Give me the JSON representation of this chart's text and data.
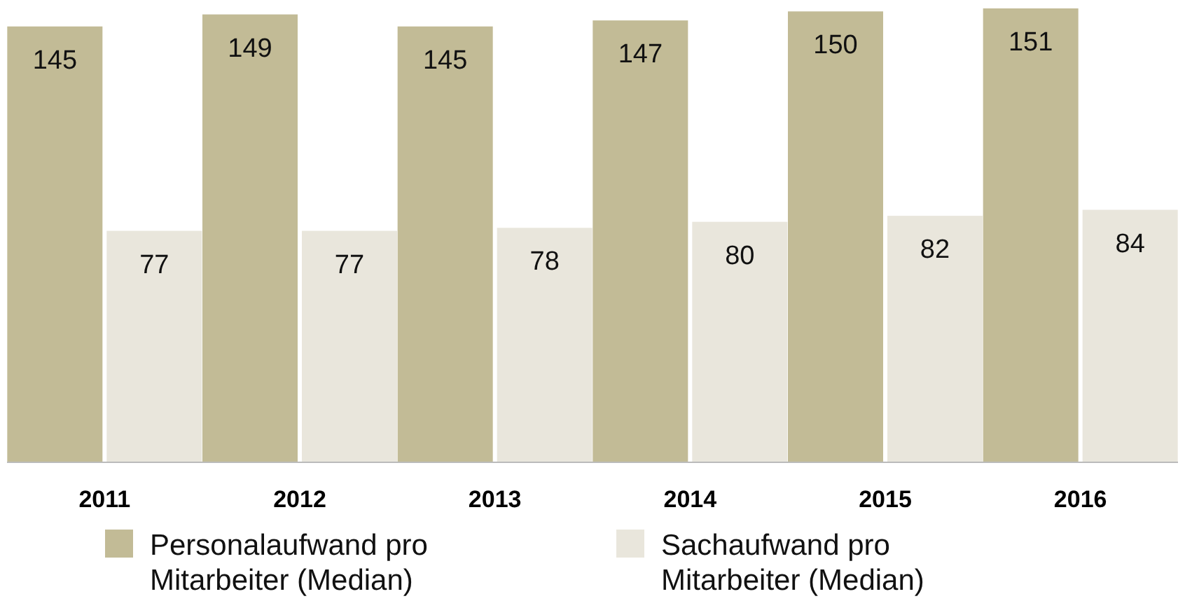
{
  "chart_data": {
    "type": "bar",
    "categories": [
      "2011",
      "2012",
      "2013",
      "2014",
      "2015",
      "2016"
    ],
    "series": [
      {
        "name": "Personalaufwand pro Mitarbeiter (Median)",
        "color": "#c2bb96",
        "values": [
          145,
          149,
          145,
          147,
          150,
          151
        ]
      },
      {
        "name": "Sachaufwand pro Mitarbeiter (Median)",
        "color": "#e9e6dc",
        "values": [
          77,
          77,
          78,
          80,
          82,
          84
        ]
      }
    ],
    "data_labels": true,
    "legend": "bottom"
  }
}
